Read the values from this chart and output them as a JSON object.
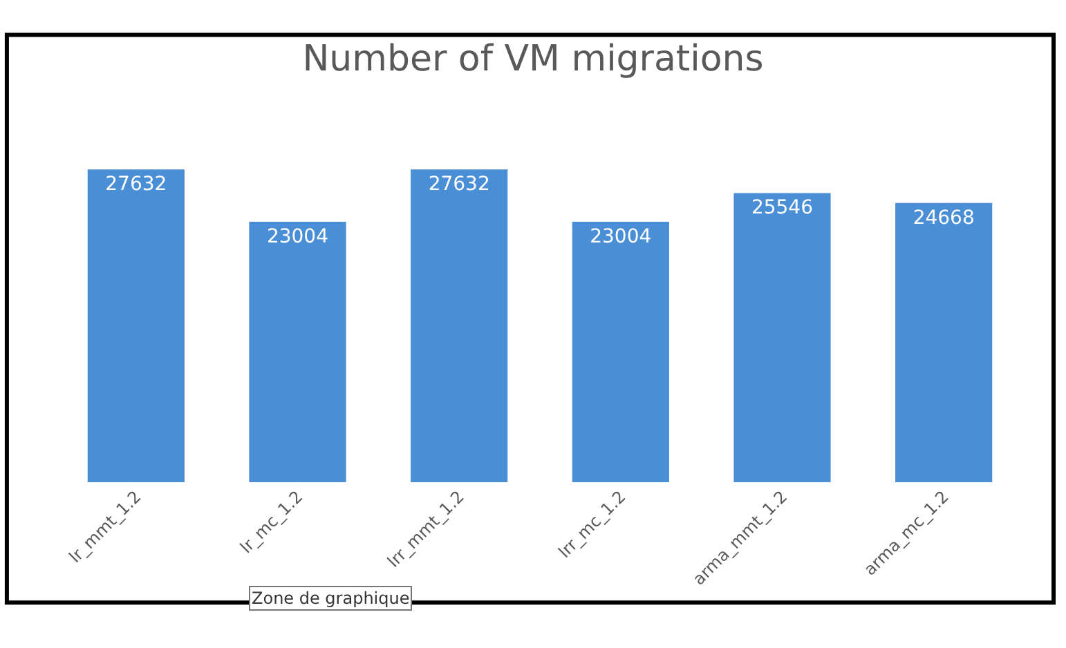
{
  "chart_data": {
    "type": "bar",
    "title": "Number of VM migrations",
    "categories": [
      "lr_mmt_1.2",
      "lr_mc_1.2",
      "lrr_mmt_1.2",
      "lrr_mc_1.2",
      "arma_mmt_1.2",
      "arma_mc_1.2"
    ],
    "values": [
      27632,
      23004,
      27632,
      23004,
      25546,
      24668
    ],
    "color": "#4a8fd6",
    "data_labels": true,
    "legend": false,
    "annotations": [
      "Zone de graphique"
    ]
  }
}
